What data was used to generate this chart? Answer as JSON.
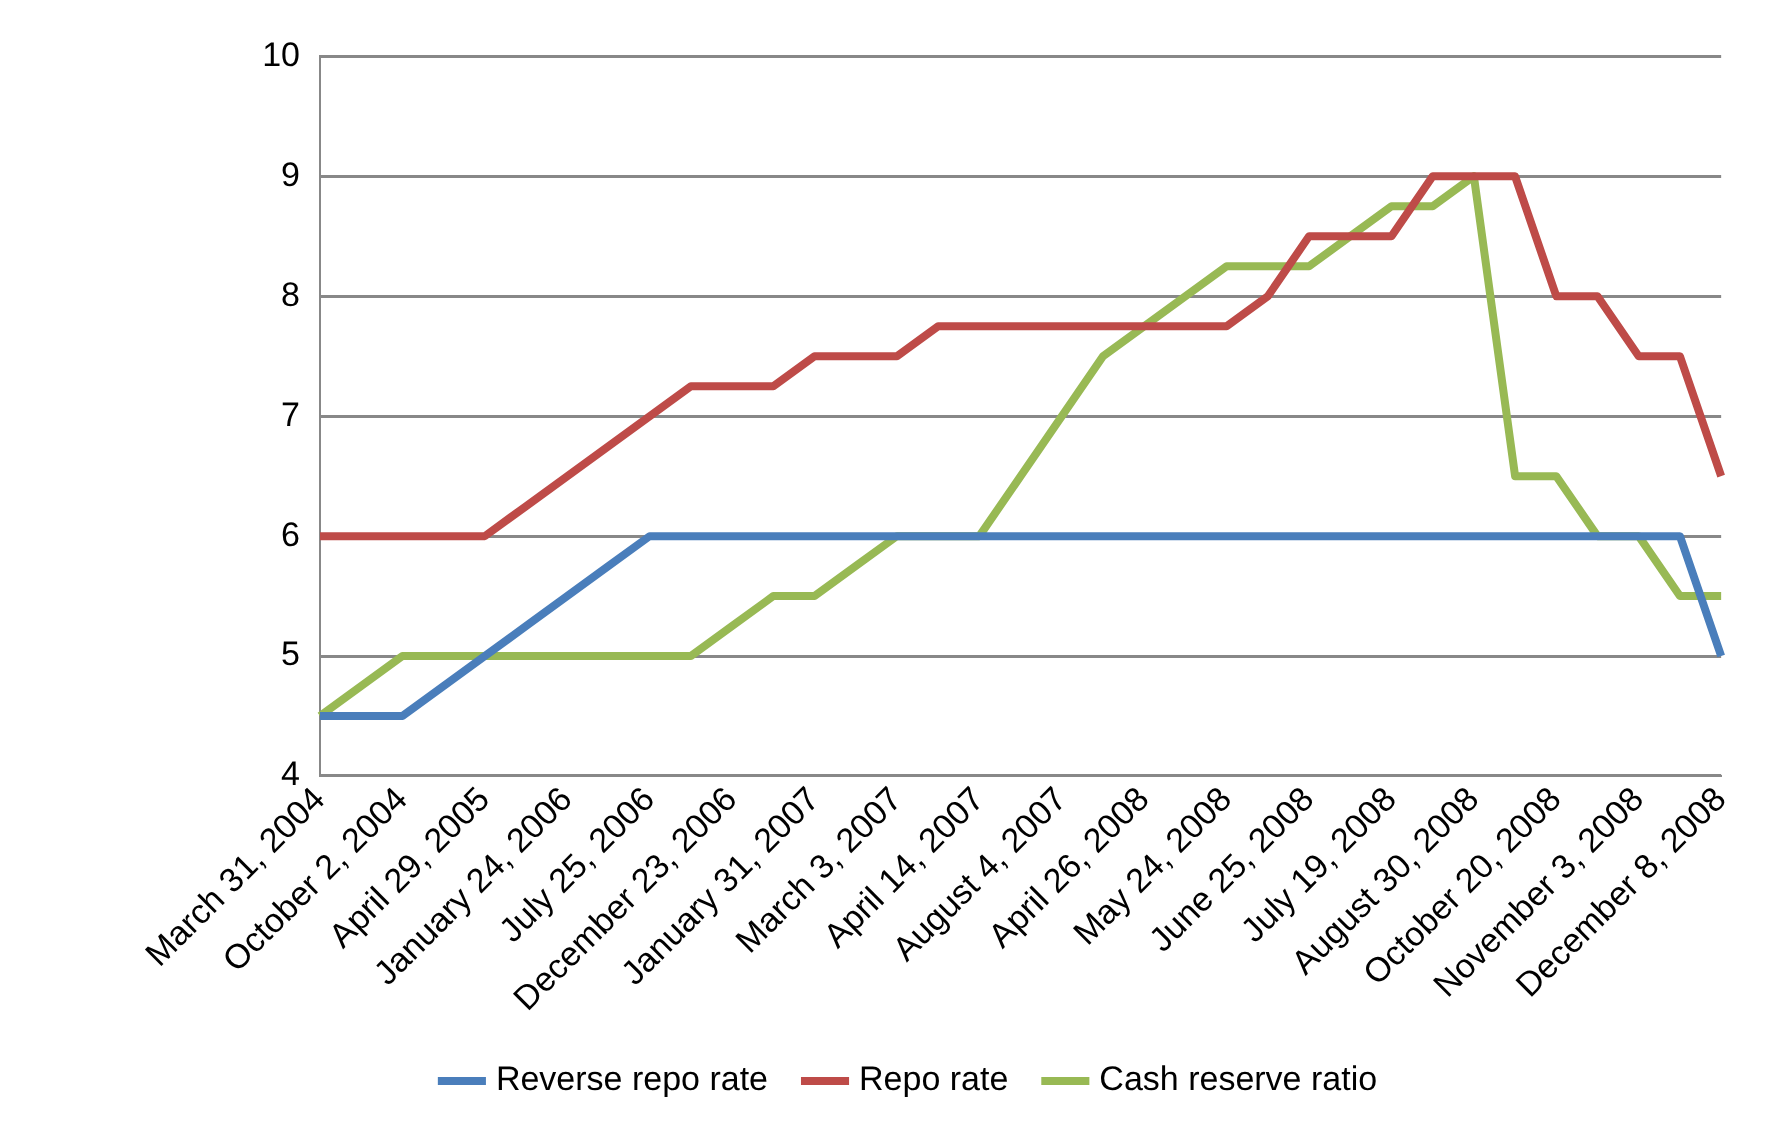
{
  "chart_data": {
    "type": "line",
    "categories": [
      "March 31, 2004",
      null,
      "October 2, 2004",
      null,
      "April 29, 2005",
      null,
      "January 24, 2006",
      null,
      "July 25, 2006",
      null,
      "December 23, 2006",
      null,
      "January 31, 2007",
      null,
      "March 3, 2007",
      null,
      "April 14, 2007",
      null,
      "August 4, 2007",
      null,
      "April 26, 2008",
      null,
      "May 24, 2008",
      null,
      "June 25, 2008",
      null,
      "July 19, 2008",
      null,
      "August 30, 2008",
      null,
      "October 20, 2008",
      null,
      "November 3, 2008",
      null,
      "December 8, 2008"
    ],
    "series": [
      {
        "name": "Reverse repo rate",
        "color": "#4a7ebb",
        "values": [
          4.5,
          4.5,
          4.5,
          4.75,
          5,
          5.25,
          5.5,
          5.75,
          6,
          6,
          6,
          6,
          6,
          6,
          6,
          6,
          6,
          6,
          6,
          6,
          6,
          6,
          6,
          6,
          6,
          6,
          6,
          6,
          6,
          6,
          6,
          6,
          6,
          6,
          5
        ]
      },
      {
        "name": "Repo rate",
        "color": "#be4b48",
        "values": [
          6,
          6,
          6,
          6,
          6,
          6.25,
          6.5,
          6.75,
          7,
          7.25,
          7.25,
          7.25,
          7.5,
          7.5,
          7.5,
          7.75,
          7.75,
          7.75,
          7.75,
          7.75,
          7.75,
          7.75,
          7.75,
          8,
          8.5,
          8.5,
          8.5,
          9,
          9,
          9,
          8,
          8,
          7.5,
          7.5,
          6.5
        ]
      },
      {
        "name": "Cash reserve ratio",
        "color": "#98b954",
        "values": [
          4.5,
          4.75,
          5,
          5,
          5,
          5,
          5,
          5,
          5,
          5,
          5.25,
          5.5,
          5.5,
          5.75,
          6,
          6,
          6,
          6.5,
          7,
          7.5,
          7.75,
          8,
          8.25,
          8.25,
          8.25,
          8.5,
          8.75,
          8.75,
          9,
          6.5,
          6.5,
          6,
          6,
          5.5,
          5.5
        ]
      }
    ],
    "ylim": [
      4,
      10
    ],
    "yticks": [
      4,
      5,
      6,
      7,
      8,
      9,
      10
    ],
    "grid": "y",
    "legend": "bottom",
    "marker": "none",
    "line_style": "solid"
  }
}
